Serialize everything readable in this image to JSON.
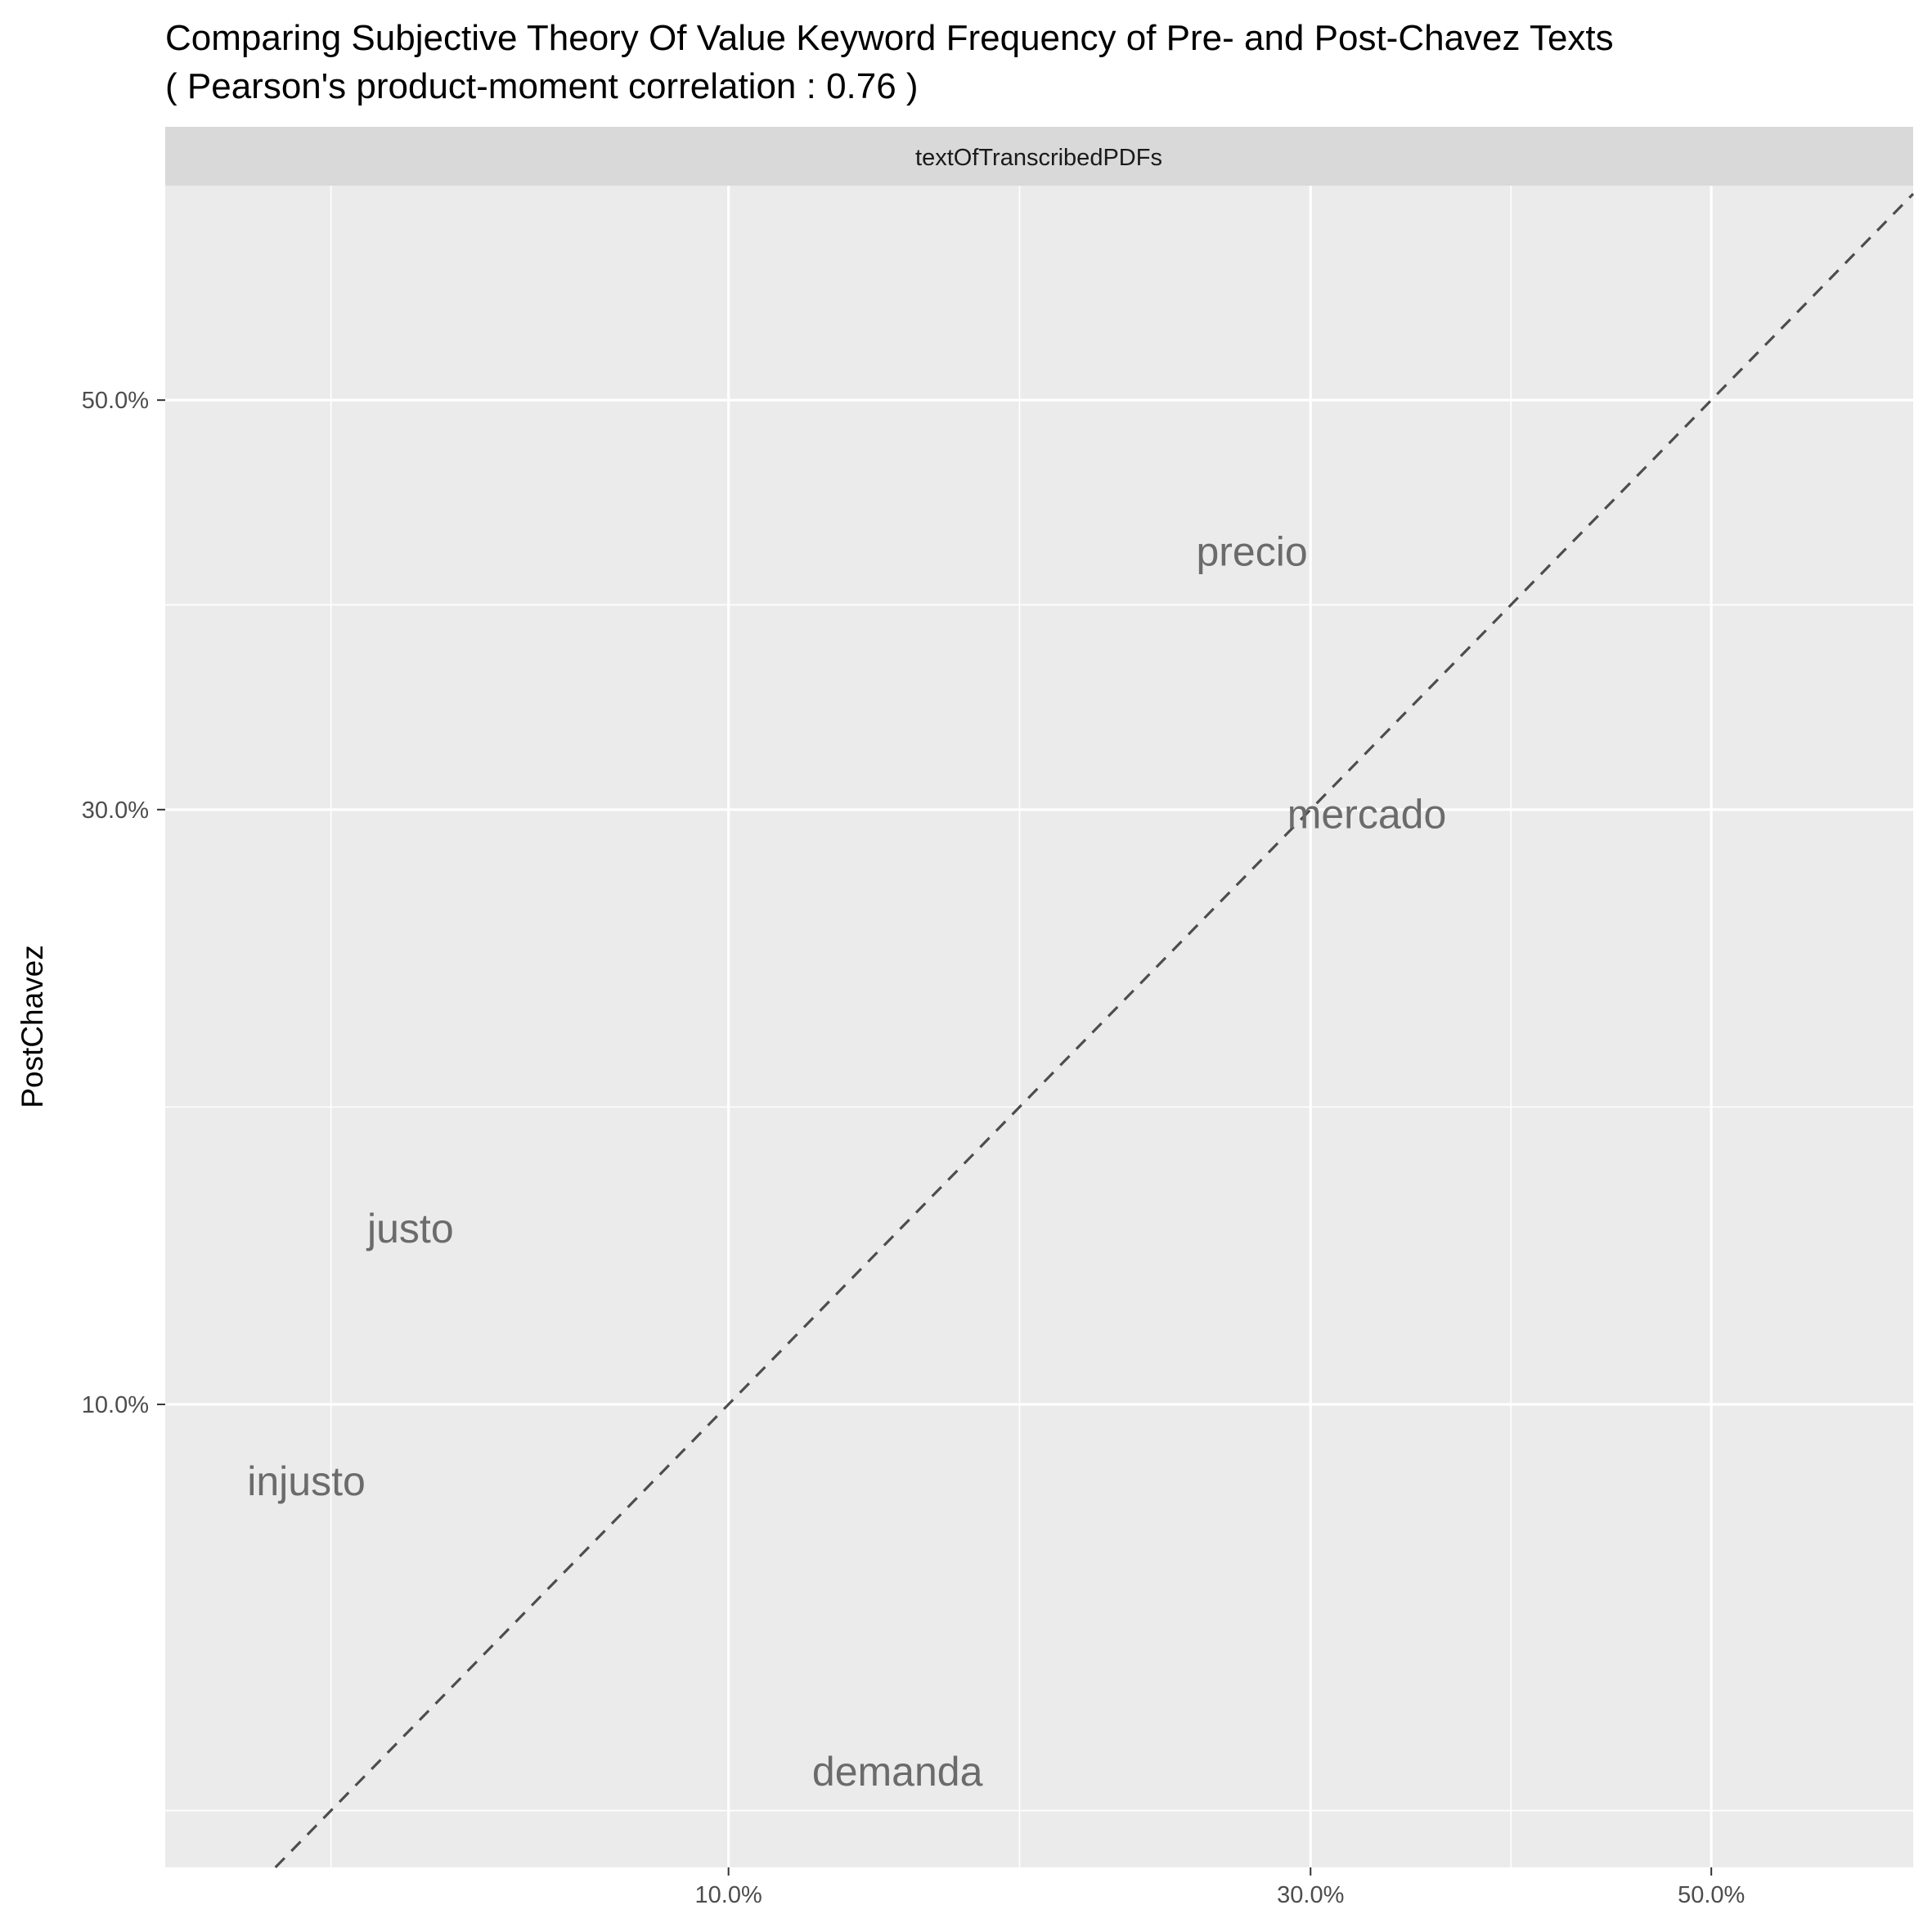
{
  "chart_data": {
    "type": "scatter",
    "title": "Comparing Subjective Theory Of Value Keyword Frequency of Pre- and Post-Chavez Texts",
    "subtitle": "( Pearson's product-moment correlation :  0.76 )",
    "facet": "textOfTranscribedPDFs",
    "xlabel": "",
    "ylabel": "PostChavez",
    "x_scale": "sqrt",
    "y_scale": "sqrt",
    "xlim": [
      0.0085,
      0.62
    ],
    "ylim": [
      0.0185,
      0.625
    ],
    "x_ticks": [
      0.1,
      0.3,
      0.5
    ],
    "x_tick_labels": [
      "10.0%",
      "30.0%",
      "50.0%"
    ],
    "y_ticks": [
      0.1,
      0.3,
      0.5
    ],
    "y_tick_labels": [
      "10.0%",
      "30.0%",
      "50.0%"
    ],
    "reference_line": "y = x (dashed)",
    "grid": true,
    "points": [
      {
        "label": "precio",
        "x": 0.275,
        "y": 0.42
      },
      {
        "label": "mercado",
        "x": 0.325,
        "y": 0.298
      },
      {
        "label": "justo",
        "x": 0.036,
        "y": 0.148
      },
      {
        "label": "injusto",
        "x": 0.022,
        "y": 0.082
      },
      {
        "label": "demanda",
        "x": 0.147,
        "y": 0.03
      }
    ]
  }
}
